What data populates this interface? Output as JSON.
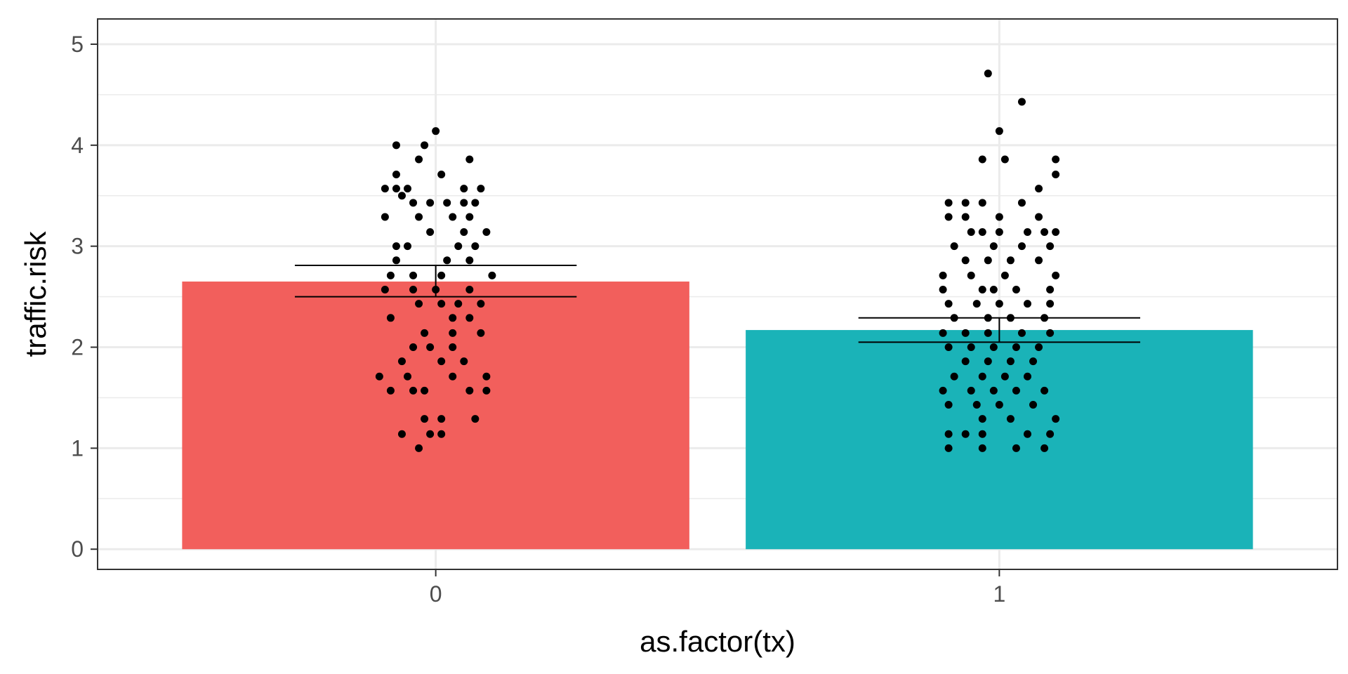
{
  "chart_data": {
    "type": "bar",
    "title": "",
    "xlabel": "as.factor(tx)",
    "ylabel": "traffic.risk",
    "categories": [
      "0",
      "1"
    ],
    "values": [
      2.65,
      2.17
    ],
    "error_bars": [
      {
        "category": "0",
        "low": 2.5,
        "high": 2.81
      },
      {
        "category": "1",
        "low": 2.05,
        "high": 2.29
      }
    ],
    "bar_colors": [
      "#F25F5C",
      "#1AB3B8"
    ],
    "point_color": "#000000",
    "ylim": [
      -0.2,
      5.25
    ],
    "xlim": [
      0.4,
      2.6
    ],
    "y_ticks": [
      0,
      1,
      2,
      3,
      4,
      5
    ],
    "y_tick_labels": [
      "0",
      "1",
      "2",
      "3",
      "4",
      "5"
    ],
    "grid": true,
    "legend": "none",
    "points": [
      {
        "group": "0",
        "x": -0.07,
        "y": 4.0
      },
      {
        "group": "0",
        "x": -0.02,
        "y": 4.0
      },
      {
        "group": "0",
        "x": 0.0,
        "y": 4.14
      },
      {
        "group": "0",
        "x": -0.03,
        "y": 3.86
      },
      {
        "group": "0",
        "x": 0.06,
        "y": 3.86
      },
      {
        "group": "0",
        "x": -0.07,
        "y": 3.71
      },
      {
        "group": "0",
        "x": 0.01,
        "y": 3.71
      },
      {
        "group": "0",
        "x": -0.09,
        "y": 3.57
      },
      {
        "group": "0",
        "x": -0.07,
        "y": 3.57
      },
      {
        "group": "0",
        "x": -0.05,
        "y": 3.57
      },
      {
        "group": "0",
        "x": 0.05,
        "y": 3.57
      },
      {
        "group": "0",
        "x": 0.08,
        "y": 3.57
      },
      {
        "group": "0",
        "x": -0.06,
        "y": 3.5
      },
      {
        "group": "0",
        "x": -0.04,
        "y": 3.43
      },
      {
        "group": "0",
        "x": -0.01,
        "y": 3.43
      },
      {
        "group": "0",
        "x": 0.02,
        "y": 3.43
      },
      {
        "group": "0",
        "x": 0.05,
        "y": 3.43
      },
      {
        "group": "0",
        "x": 0.07,
        "y": 3.43
      },
      {
        "group": "0",
        "x": -0.09,
        "y": 3.29
      },
      {
        "group": "0",
        "x": -0.03,
        "y": 3.29
      },
      {
        "group": "0",
        "x": 0.03,
        "y": 3.29
      },
      {
        "group": "0",
        "x": 0.06,
        "y": 3.29
      },
      {
        "group": "0",
        "x": -0.01,
        "y": 3.14
      },
      {
        "group": "0",
        "x": 0.05,
        "y": 3.14
      },
      {
        "group": "0",
        "x": 0.09,
        "y": 3.14
      },
      {
        "group": "0",
        "x": -0.07,
        "y": 3.0
      },
      {
        "group": "0",
        "x": -0.05,
        "y": 3.0
      },
      {
        "group": "0",
        "x": 0.04,
        "y": 3.0
      },
      {
        "group": "0",
        "x": 0.07,
        "y": 3.0
      },
      {
        "group": "0",
        "x": -0.07,
        "y": 2.86
      },
      {
        "group": "0",
        "x": 0.02,
        "y": 2.86
      },
      {
        "group": "0",
        "x": 0.06,
        "y": 2.86
      },
      {
        "group": "0",
        "x": -0.08,
        "y": 2.71
      },
      {
        "group": "0",
        "x": -0.04,
        "y": 2.71
      },
      {
        "group": "0",
        "x": 0.01,
        "y": 2.71
      },
      {
        "group": "0",
        "x": 0.1,
        "y": 2.71
      },
      {
        "group": "0",
        "x": -0.09,
        "y": 2.57
      },
      {
        "group": "0",
        "x": -0.04,
        "y": 2.57
      },
      {
        "group": "0",
        "x": 0.0,
        "y": 2.57
      },
      {
        "group": "0",
        "x": 0.06,
        "y": 2.57
      },
      {
        "group": "0",
        "x": -0.03,
        "y": 2.43
      },
      {
        "group": "0",
        "x": 0.01,
        "y": 2.43
      },
      {
        "group": "0",
        "x": 0.04,
        "y": 2.43
      },
      {
        "group": "0",
        "x": 0.08,
        "y": 2.43
      },
      {
        "group": "0",
        "x": -0.08,
        "y": 2.29
      },
      {
        "group": "0",
        "x": 0.03,
        "y": 2.29
      },
      {
        "group": "0",
        "x": 0.06,
        "y": 2.29
      },
      {
        "group": "0",
        "x": -0.02,
        "y": 2.14
      },
      {
        "group": "0",
        "x": 0.03,
        "y": 2.14
      },
      {
        "group": "0",
        "x": 0.08,
        "y": 2.14
      },
      {
        "group": "0",
        "x": -0.04,
        "y": 2.0
      },
      {
        "group": "0",
        "x": -0.01,
        "y": 2.0
      },
      {
        "group": "0",
        "x": 0.03,
        "y": 2.0
      },
      {
        "group": "0",
        "x": -0.06,
        "y": 1.86
      },
      {
        "group": "0",
        "x": 0.01,
        "y": 1.86
      },
      {
        "group": "0",
        "x": 0.05,
        "y": 1.86
      },
      {
        "group": "0",
        "x": -0.1,
        "y": 1.71
      },
      {
        "group": "0",
        "x": -0.05,
        "y": 1.71
      },
      {
        "group": "0",
        "x": 0.03,
        "y": 1.71
      },
      {
        "group": "0",
        "x": 0.09,
        "y": 1.71
      },
      {
        "group": "0",
        "x": -0.08,
        "y": 1.57
      },
      {
        "group": "0",
        "x": -0.04,
        "y": 1.57
      },
      {
        "group": "0",
        "x": -0.02,
        "y": 1.57
      },
      {
        "group": "0",
        "x": 0.06,
        "y": 1.57
      },
      {
        "group": "0",
        "x": 0.09,
        "y": 1.57
      },
      {
        "group": "0",
        "x": -0.02,
        "y": 1.29
      },
      {
        "group": "0",
        "x": 0.01,
        "y": 1.29
      },
      {
        "group": "0",
        "x": 0.07,
        "y": 1.29
      },
      {
        "group": "0",
        "x": -0.06,
        "y": 1.14
      },
      {
        "group": "0",
        "x": -0.01,
        "y": 1.14
      },
      {
        "group": "0",
        "x": 0.01,
        "y": 1.14
      },
      {
        "group": "0",
        "x": -0.03,
        "y": 1.0
      },
      {
        "group": "1",
        "x": -0.02,
        "y": 4.71
      },
      {
        "group": "1",
        "x": 0.04,
        "y": 4.43
      },
      {
        "group": "1",
        "x": 0.0,
        "y": 4.14
      },
      {
        "group": "1",
        "x": -0.03,
        "y": 3.86
      },
      {
        "group": "1",
        "x": 0.01,
        "y": 3.86
      },
      {
        "group": "1",
        "x": 0.1,
        "y": 3.86
      },
      {
        "group": "1",
        "x": 0.1,
        "y": 3.71
      },
      {
        "group": "1",
        "x": 0.07,
        "y": 3.57
      },
      {
        "group": "1",
        "x": -0.09,
        "y": 3.43
      },
      {
        "group": "1",
        "x": -0.06,
        "y": 3.43
      },
      {
        "group": "1",
        "x": -0.03,
        "y": 3.43
      },
      {
        "group": "1",
        "x": 0.04,
        "y": 3.43
      },
      {
        "group": "1",
        "x": -0.09,
        "y": 3.29
      },
      {
        "group": "1",
        "x": -0.06,
        "y": 3.29
      },
      {
        "group": "1",
        "x": 0.0,
        "y": 3.29
      },
      {
        "group": "1",
        "x": 0.07,
        "y": 3.29
      },
      {
        "group": "1",
        "x": -0.05,
        "y": 3.14
      },
      {
        "group": "1",
        "x": -0.03,
        "y": 3.14
      },
      {
        "group": "1",
        "x": 0.0,
        "y": 3.14
      },
      {
        "group": "1",
        "x": 0.05,
        "y": 3.14
      },
      {
        "group": "1",
        "x": 0.08,
        "y": 3.14
      },
      {
        "group": "1",
        "x": 0.1,
        "y": 3.14
      },
      {
        "group": "1",
        "x": -0.08,
        "y": 3.0
      },
      {
        "group": "1",
        "x": -0.01,
        "y": 3.0
      },
      {
        "group": "1",
        "x": 0.04,
        "y": 3.0
      },
      {
        "group": "1",
        "x": 0.09,
        "y": 3.0
      },
      {
        "group": "1",
        "x": -0.06,
        "y": 2.86
      },
      {
        "group": "1",
        "x": -0.02,
        "y": 2.86
      },
      {
        "group": "1",
        "x": 0.02,
        "y": 2.86
      },
      {
        "group": "1",
        "x": 0.07,
        "y": 2.86
      },
      {
        "group": "1",
        "x": -0.1,
        "y": 2.71
      },
      {
        "group": "1",
        "x": -0.05,
        "y": 2.71
      },
      {
        "group": "1",
        "x": 0.01,
        "y": 2.71
      },
      {
        "group": "1",
        "x": 0.1,
        "y": 2.71
      },
      {
        "group": "1",
        "x": -0.1,
        "y": 2.57
      },
      {
        "group": "1",
        "x": -0.03,
        "y": 2.57
      },
      {
        "group": "1",
        "x": -0.01,
        "y": 2.57
      },
      {
        "group": "1",
        "x": 0.03,
        "y": 2.57
      },
      {
        "group": "1",
        "x": 0.09,
        "y": 2.57
      },
      {
        "group": "1",
        "x": -0.09,
        "y": 2.43
      },
      {
        "group": "1",
        "x": -0.04,
        "y": 2.43
      },
      {
        "group": "1",
        "x": 0.0,
        "y": 2.43
      },
      {
        "group": "1",
        "x": 0.05,
        "y": 2.43
      },
      {
        "group": "1",
        "x": 0.09,
        "y": 2.43
      },
      {
        "group": "1",
        "x": -0.08,
        "y": 2.29
      },
      {
        "group": "1",
        "x": -0.02,
        "y": 2.29
      },
      {
        "group": "1",
        "x": 0.02,
        "y": 2.29
      },
      {
        "group": "1",
        "x": 0.08,
        "y": 2.29
      },
      {
        "group": "1",
        "x": -0.1,
        "y": 2.14
      },
      {
        "group": "1",
        "x": -0.06,
        "y": 2.14
      },
      {
        "group": "1",
        "x": -0.02,
        "y": 2.14
      },
      {
        "group": "1",
        "x": 0.04,
        "y": 2.14
      },
      {
        "group": "1",
        "x": 0.09,
        "y": 2.14
      },
      {
        "group": "1",
        "x": -0.09,
        "y": 2.0
      },
      {
        "group": "1",
        "x": -0.05,
        "y": 2.0
      },
      {
        "group": "1",
        "x": -0.01,
        "y": 2.0
      },
      {
        "group": "1",
        "x": 0.03,
        "y": 2.0
      },
      {
        "group": "1",
        "x": 0.07,
        "y": 2.0
      },
      {
        "group": "1",
        "x": -0.06,
        "y": 1.86
      },
      {
        "group": "1",
        "x": -0.02,
        "y": 1.86
      },
      {
        "group": "1",
        "x": 0.02,
        "y": 1.86
      },
      {
        "group": "1",
        "x": 0.06,
        "y": 1.86
      },
      {
        "group": "1",
        "x": -0.08,
        "y": 1.71
      },
      {
        "group": "1",
        "x": -0.03,
        "y": 1.71
      },
      {
        "group": "1",
        "x": 0.01,
        "y": 1.71
      },
      {
        "group": "1",
        "x": 0.05,
        "y": 1.71
      },
      {
        "group": "1",
        "x": -0.1,
        "y": 1.57
      },
      {
        "group": "1",
        "x": -0.05,
        "y": 1.57
      },
      {
        "group": "1",
        "x": -0.01,
        "y": 1.57
      },
      {
        "group": "1",
        "x": 0.03,
        "y": 1.57
      },
      {
        "group": "1",
        "x": 0.08,
        "y": 1.57
      },
      {
        "group": "1",
        "x": -0.09,
        "y": 1.43
      },
      {
        "group": "1",
        "x": -0.04,
        "y": 1.43
      },
      {
        "group": "1",
        "x": 0.0,
        "y": 1.43
      },
      {
        "group": "1",
        "x": 0.06,
        "y": 1.43
      },
      {
        "group": "1",
        "x": -0.03,
        "y": 1.29
      },
      {
        "group": "1",
        "x": 0.02,
        "y": 1.29
      },
      {
        "group": "1",
        "x": 0.1,
        "y": 1.29
      },
      {
        "group": "1",
        "x": -0.09,
        "y": 1.14
      },
      {
        "group": "1",
        "x": -0.06,
        "y": 1.14
      },
      {
        "group": "1",
        "x": -0.03,
        "y": 1.14
      },
      {
        "group": "1",
        "x": 0.05,
        "y": 1.14
      },
      {
        "group": "1",
        "x": 0.09,
        "y": 1.14
      },
      {
        "group": "1",
        "x": -0.09,
        "y": 1.0
      },
      {
        "group": "1",
        "x": -0.03,
        "y": 1.0
      },
      {
        "group": "1",
        "x": 0.03,
        "y": 1.0
      },
      {
        "group": "1",
        "x": 0.08,
        "y": 1.0
      }
    ]
  }
}
